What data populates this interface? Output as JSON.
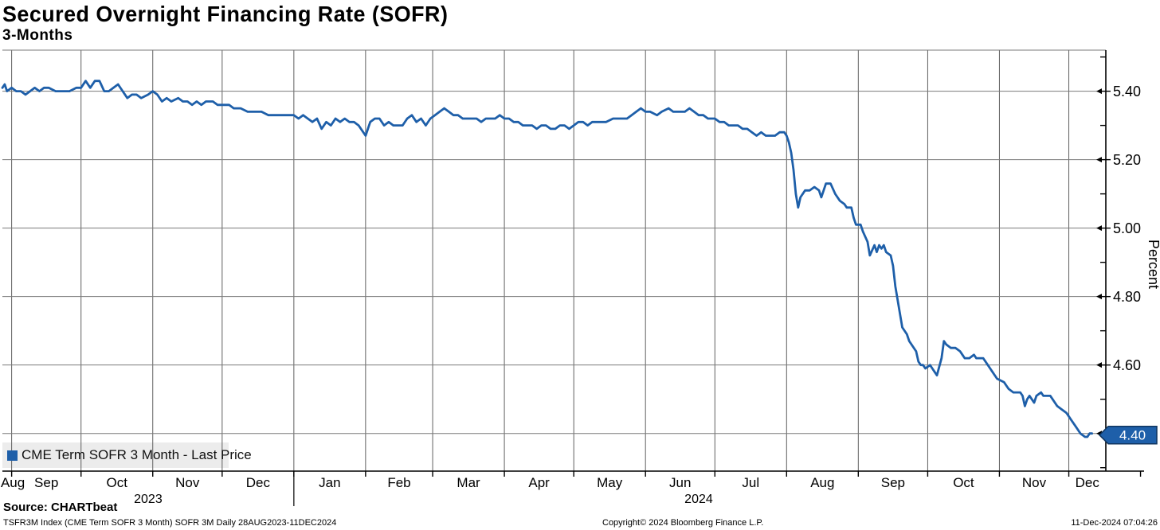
{
  "header": {
    "title": "Secured Overnight Financing Rate (SOFR)",
    "subtitle": "3-Months"
  },
  "legend": {
    "label": "CME Term SOFR 3 Month - Last Price"
  },
  "footer": {
    "source": "Source: CHARTbeat",
    "description": "TSFR3M Index (CME Term SOFR 3 Month) SOFR 3M  Daily 28AUG2023-11DEC2024",
    "copyright": "Copyright© 2024 Bloomberg Finance L.P.",
    "timestamp": "11-Dec-2024 07:04:26"
  },
  "colors": {
    "line": "#1e5fa9",
    "tag_bg": "#1e5fa9",
    "tag_border": "#10355e",
    "tag_text": "#ffffff",
    "legend_bg": "#ececec",
    "grid_h": "#7a7a7a",
    "grid_v": "#5f5f5f",
    "axis": "#000000",
    "text": "#000000"
  },
  "chart_data": {
    "type": "line",
    "title": "Secured Overnight Financing Rate (SOFR)",
    "subtitle": "3-Months",
    "ylabel": "Percent",
    "xlabel": "",
    "grid": true,
    "legend_position": "bottom-left",
    "last_price": "4.40",
    "x_unit": "days since 28AUG2023",
    "xlim": [
      0,
      477
    ],
    "ylim": [
      4.29,
      5.52
    ],
    "yticks_major": [
      5.4,
      5.2,
      5.0,
      4.8,
      4.6,
      4.4
    ],
    "yticks_minor": [
      5.5,
      5.3,
      5.1,
      4.9,
      4.7,
      4.5,
      4.3
    ],
    "month_boundaries": [
      4,
      34,
      65,
      95,
      126,
      157,
      186,
      217,
      247,
      278,
      308,
      339,
      370,
      400,
      431,
      461
    ],
    "axis_end_tick": 492,
    "months": [
      {
        "label": "Aug",
        "day": 4.5
      },
      {
        "label": "Sep",
        "day": 19
      },
      {
        "label": "Oct",
        "day": 49.5
      },
      {
        "label": "Nov",
        "day": 80
      },
      {
        "label": "Dec",
        "day": 110.5
      },
      {
        "label": "Jan",
        "day": 141.5
      },
      {
        "label": "Feb",
        "day": 171.5
      },
      {
        "label": "Mar",
        "day": 201.5
      },
      {
        "label": "Apr",
        "day": 232
      },
      {
        "label": "May",
        "day": 262.5
      },
      {
        "label": "Jun",
        "day": 293
      },
      {
        "label": "Jul",
        "day": 323.5
      },
      {
        "label": "Aug",
        "day": 354.5
      },
      {
        "label": "Sep",
        "day": 385
      },
      {
        "label": "Oct",
        "day": 415.5
      },
      {
        "label": "Nov",
        "day": 446
      },
      {
        "label": "Dec",
        "day": 469
      }
    ],
    "year_separator_day": 126,
    "year_labels": [
      {
        "label": "2023",
        "day": 63
      },
      {
        "label": "2024",
        "day": 301
      }
    ],
    "series": [
      {
        "name": "CME Term SOFR 3 Month - Last Price",
        "points": [
          [
            0,
            5.41
          ],
          [
            1,
            5.42
          ],
          [
            2,
            5.4
          ],
          [
            4,
            5.41
          ],
          [
            6,
            5.4
          ],
          [
            8,
            5.4
          ],
          [
            10,
            5.39
          ],
          [
            12,
            5.4
          ],
          [
            14,
            5.41
          ],
          [
            16,
            5.4
          ],
          [
            18,
            5.41
          ],
          [
            20,
            5.41
          ],
          [
            23,
            5.4
          ],
          [
            26,
            5.4
          ],
          [
            29,
            5.4
          ],
          [
            32,
            5.41
          ],
          [
            34,
            5.41
          ],
          [
            36,
            5.43
          ],
          [
            38,
            5.41
          ],
          [
            40,
            5.43
          ],
          [
            42,
            5.43
          ],
          [
            44,
            5.4
          ],
          [
            46,
            5.4
          ],
          [
            48,
            5.41
          ],
          [
            50,
            5.42
          ],
          [
            52,
            5.4
          ],
          [
            54,
            5.38
          ],
          [
            56,
            5.39
          ],
          [
            58,
            5.39
          ],
          [
            60,
            5.38
          ],
          [
            63,
            5.39
          ],
          [
            65,
            5.4
          ],
          [
            67,
            5.39
          ],
          [
            69,
            5.37
          ],
          [
            71,
            5.38
          ],
          [
            73,
            5.37
          ],
          [
            76,
            5.38
          ],
          [
            78,
            5.37
          ],
          [
            80,
            5.37
          ],
          [
            82,
            5.36
          ],
          [
            84,
            5.37
          ],
          [
            86,
            5.36
          ],
          [
            88,
            5.37
          ],
          [
            91,
            5.37
          ],
          [
            93,
            5.36
          ],
          [
            95,
            5.36
          ],
          [
            98,
            5.36
          ],
          [
            100,
            5.35
          ],
          [
            103,
            5.35
          ],
          [
            106,
            5.34
          ],
          [
            109,
            5.34
          ],
          [
            112,
            5.34
          ],
          [
            115,
            5.33
          ],
          [
            118,
            5.33
          ],
          [
            121,
            5.33
          ],
          [
            126,
            5.33
          ],
          [
            128,
            5.32
          ],
          [
            130,
            5.33
          ],
          [
            132,
            5.32
          ],
          [
            134,
            5.31
          ],
          [
            136,
            5.32
          ],
          [
            138,
            5.29
          ],
          [
            140,
            5.31
          ],
          [
            142,
            5.3
          ],
          [
            144,
            5.32
          ],
          [
            146,
            5.31
          ],
          [
            148,
            5.32
          ],
          [
            150,
            5.31
          ],
          [
            152,
            5.31
          ],
          [
            154,
            5.3
          ],
          [
            157,
            5.27
          ],
          [
            159,
            5.31
          ],
          [
            161,
            5.32
          ],
          [
            163,
            5.32
          ],
          [
            165,
            5.3
          ],
          [
            167,
            5.31
          ],
          [
            169,
            5.3
          ],
          [
            171,
            5.3
          ],
          [
            173,
            5.3
          ],
          [
            175,
            5.32
          ],
          [
            177,
            5.33
          ],
          [
            179,
            5.31
          ],
          [
            181,
            5.32
          ],
          [
            183,
            5.3
          ],
          [
            185,
            5.32
          ],
          [
            187,
            5.33
          ],
          [
            189,
            5.34
          ],
          [
            191,
            5.35
          ],
          [
            193,
            5.34
          ],
          [
            195,
            5.33
          ],
          [
            197,
            5.33
          ],
          [
            199,
            5.32
          ],
          [
            201,
            5.32
          ],
          [
            203,
            5.32
          ],
          [
            205,
            5.32
          ],
          [
            207,
            5.31
          ],
          [
            209,
            5.32
          ],
          [
            211,
            5.32
          ],
          [
            213,
            5.32
          ],
          [
            215,
            5.33
          ],
          [
            217,
            5.32
          ],
          [
            219,
            5.32
          ],
          [
            221,
            5.31
          ],
          [
            223,
            5.31
          ],
          [
            225,
            5.3
          ],
          [
            227,
            5.3
          ],
          [
            229,
            5.3
          ],
          [
            231,
            5.29
          ],
          [
            233,
            5.3
          ],
          [
            235,
            5.3
          ],
          [
            237,
            5.29
          ],
          [
            239,
            5.29
          ],
          [
            241,
            5.3
          ],
          [
            243,
            5.3
          ],
          [
            245,
            5.29
          ],
          [
            247,
            5.3
          ],
          [
            249,
            5.31
          ],
          [
            251,
            5.31
          ],
          [
            253,
            5.3
          ],
          [
            255,
            5.31
          ],
          [
            258,
            5.31
          ],
          [
            261,
            5.31
          ],
          [
            264,
            5.32
          ],
          [
            267,
            5.32
          ],
          [
            270,
            5.32
          ],
          [
            272,
            5.33
          ],
          [
            274,
            5.34
          ],
          [
            276,
            5.35
          ],
          [
            278,
            5.34
          ],
          [
            280,
            5.34
          ],
          [
            283,
            5.33
          ],
          [
            285,
            5.34
          ],
          [
            288,
            5.35
          ],
          [
            290,
            5.34
          ],
          [
            293,
            5.34
          ],
          [
            295,
            5.34
          ],
          [
            297,
            5.35
          ],
          [
            299,
            5.34
          ],
          [
            301,
            5.33
          ],
          [
            303,
            5.33
          ],
          [
            305,
            5.32
          ],
          [
            308,
            5.32
          ],
          [
            310,
            5.31
          ],
          [
            312,
            5.31
          ],
          [
            314,
            5.3
          ],
          [
            316,
            5.3
          ],
          [
            318,
            5.3
          ],
          [
            320,
            5.29
          ],
          [
            322,
            5.29
          ],
          [
            324,
            5.28
          ],
          [
            326,
            5.27
          ],
          [
            328,
            5.28
          ],
          [
            330,
            5.27
          ],
          [
            332,
            5.27
          ],
          [
            334,
            5.27
          ],
          [
            336,
            5.28
          ],
          [
            338,
            5.28
          ],
          [
            339,
            5.27
          ],
          [
            340,
            5.25
          ],
          [
            341,
            5.22
          ],
          [
            342,
            5.17
          ],
          [
            343,
            5.1
          ],
          [
            344,
            5.06
          ],
          [
            345,
            5.09
          ],
          [
            347,
            5.11
          ],
          [
            349,
            5.11
          ],
          [
            351,
            5.12
          ],
          [
            353,
            5.11
          ],
          [
            354,
            5.09
          ],
          [
            356,
            5.13
          ],
          [
            358,
            5.13
          ],
          [
            360,
            5.1
          ],
          [
            362,
            5.08
          ],
          [
            364,
            5.07
          ],
          [
            365,
            5.06
          ],
          [
            367,
            5.06
          ],
          [
            368,
            5.03
          ],
          [
            369,
            5.01
          ],
          [
            371,
            5.01
          ],
          [
            372,
            4.99
          ],
          [
            374,
            4.96
          ],
          [
            375,
            4.92
          ],
          [
            377,
            4.95
          ],
          [
            378,
            4.93
          ],
          [
            379,
            4.95
          ],
          [
            380,
            4.94
          ],
          [
            381,
            4.95
          ],
          [
            382,
            4.93
          ],
          [
            384,
            4.92
          ],
          [
            385,
            4.89
          ],
          [
            386,
            4.83
          ],
          [
            387,
            4.79
          ],
          [
            388,
            4.75
          ],
          [
            389,
            4.71
          ],
          [
            391,
            4.69
          ],
          [
            392,
            4.67
          ],
          [
            393,
            4.66
          ],
          [
            395,
            4.64
          ],
          [
            396,
            4.61
          ],
          [
            397,
            4.6
          ],
          [
            398,
            4.6
          ],
          [
            399,
            4.59
          ],
          [
            401,
            4.6
          ],
          [
            402,
            4.59
          ],
          [
            403,
            4.58
          ],
          [
            404,
            4.57
          ],
          [
            406,
            4.62
          ],
          [
            407,
            4.67
          ],
          [
            408,
            4.66
          ],
          [
            410,
            4.65
          ],
          [
            412,
            4.65
          ],
          [
            414,
            4.64
          ],
          [
            415,
            4.63
          ],
          [
            416,
            4.62
          ],
          [
            418,
            4.62
          ],
          [
            420,
            4.63
          ],
          [
            421,
            4.62
          ],
          [
            423,
            4.62
          ],
          [
            424,
            4.62
          ],
          [
            426,
            4.6
          ],
          [
            427,
            4.59
          ],
          [
            428,
            4.58
          ],
          [
            429,
            4.57
          ],
          [
            430,
            4.56
          ],
          [
            433,
            4.55
          ],
          [
            434,
            4.54
          ],
          [
            435,
            4.53
          ],
          [
            437,
            4.52
          ],
          [
            438,
            4.52
          ],
          [
            440,
            4.52
          ],
          [
            441,
            4.51
          ],
          [
            442,
            4.48
          ],
          [
            443,
            4.5
          ],
          [
            444,
            4.51
          ],
          [
            445,
            4.5
          ],
          [
            446,
            4.49
          ],
          [
            447,
            4.51
          ],
          [
            449,
            4.52
          ],
          [
            450,
            4.51
          ],
          [
            452,
            4.51
          ],
          [
            453,
            4.51
          ],
          [
            454,
            4.5
          ],
          [
            455,
            4.49
          ],
          [
            456,
            4.48
          ],
          [
            458,
            4.47
          ],
          [
            460,
            4.46
          ],
          [
            461,
            4.45
          ],
          [
            462,
            4.44
          ],
          [
            464,
            4.42
          ],
          [
            465,
            4.41
          ],
          [
            466,
            4.4
          ],
          [
            468,
            4.39
          ],
          [
            469,
            4.39
          ],
          [
            470,
            4.4
          ],
          [
            471,
            4.4
          ]
        ]
      }
    ]
  }
}
